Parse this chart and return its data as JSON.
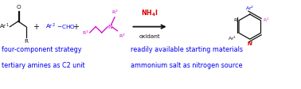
{
  "background_color": "#ffffff",
  "figsize": [
    3.78,
    1.12
  ],
  "dpi": 100,
  "blue_color": "#0000EE",
  "magenta_color": "#CC00CC",
  "red_color": "#DD0000",
  "black_color": "#111111",
  "pink_color": "#CC44CC",
  "text_bottom_left_1": "four-component strategy",
  "text_bottom_left_2": "tertiary amines as C2 unit",
  "text_bottom_right_1": "readily available starting materials",
  "text_bottom_right_2": "ammonium salt as nitrogen source",
  "font_size_main": 6.0,
  "font_size_small": 5.2,
  "font_size_sub": 4.5,
  "font_size_bottom": 5.8
}
